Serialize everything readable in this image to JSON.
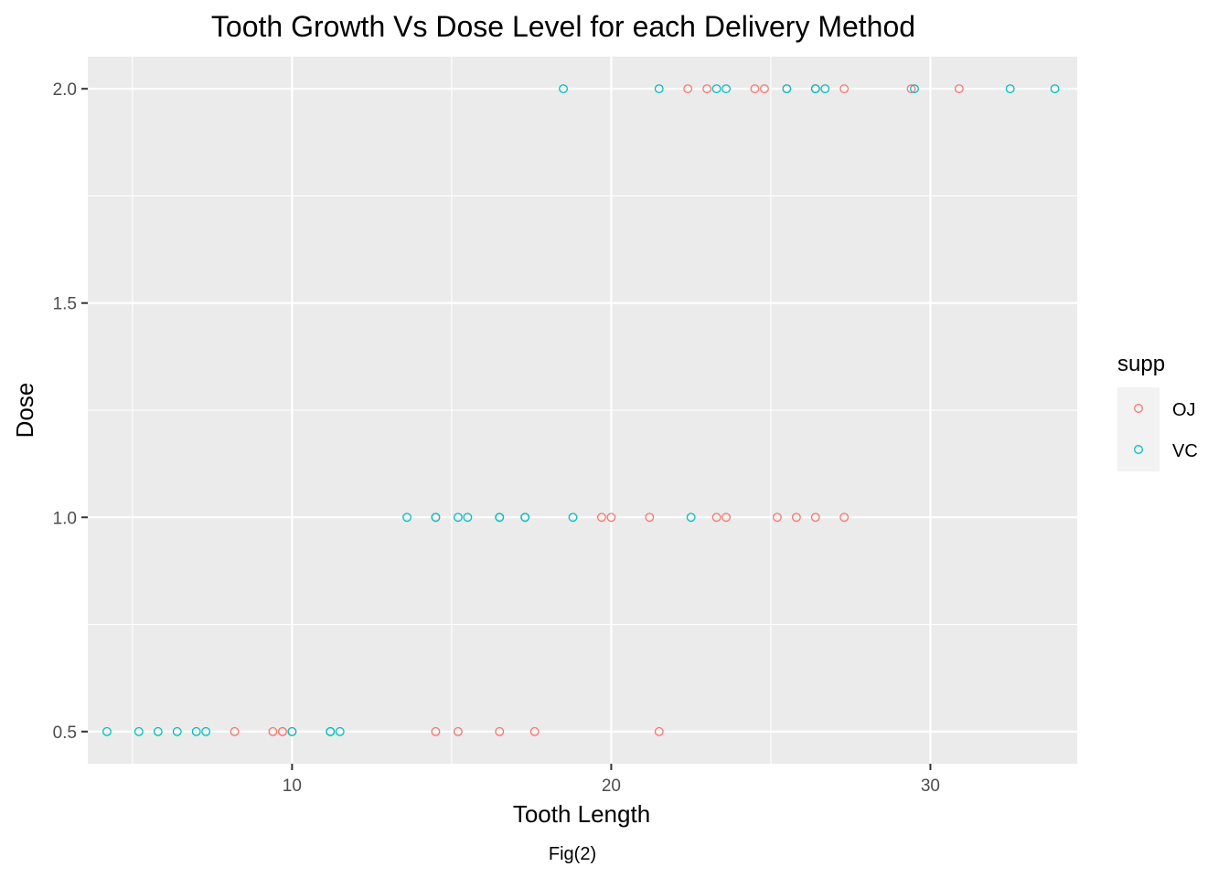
{
  "chart_data": {
    "type": "scatter",
    "title": "Tooth Growth Vs Dose Level for each Delivery Method",
    "xlabel": "Tooth Length",
    "ylabel": "Dose",
    "caption": "Fig(2)",
    "xlim": [
      3.6,
      34.6
    ],
    "ylim": [
      0.425,
      2.075
    ],
    "x_ticks": [
      10,
      20,
      30
    ],
    "y_ticks": [
      0.5,
      1.0,
      1.5,
      2.0
    ],
    "y_tick_labels": [
      "0.5",
      "1.0",
      "1.5",
      "2.0"
    ],
    "grid": true,
    "panel_background": "#ebebeb",
    "grid_color": "#ffffff",
    "legend": {
      "title": "supp",
      "position": "right",
      "background": "#f2f2f2"
    },
    "series": [
      {
        "name": "OJ",
        "color": "#f8766d",
        "x": [
          15.2,
          21.5,
          17.6,
          9.7,
          14.5,
          10.0,
          8.2,
          9.4,
          16.5,
          9.7,
          19.7,
          23.3,
          23.6,
          26.4,
          20.0,
          25.2,
          25.8,
          21.2,
          14.5,
          27.3,
          25.5,
          26.4,
          22.4,
          24.5,
          24.8,
          30.9,
          26.4,
          27.3,
          29.4,
          23.0
        ],
        "y": [
          0.5,
          0.5,
          0.5,
          0.5,
          0.5,
          0.5,
          0.5,
          0.5,
          0.5,
          0.5,
          1.0,
          1.0,
          1.0,
          1.0,
          1.0,
          1.0,
          1.0,
          1.0,
          1.0,
          1.0,
          2.0,
          2.0,
          2.0,
          2.0,
          2.0,
          2.0,
          2.0,
          2.0,
          2.0,
          2.0
        ]
      },
      {
        "name": "VC",
        "color": "#00bfc4",
        "x": [
          4.2,
          11.5,
          7.3,
          5.8,
          6.4,
          10.0,
          11.2,
          11.2,
          5.2,
          7.0,
          16.5,
          16.5,
          15.2,
          17.3,
          22.5,
          17.3,
          13.6,
          14.5,
          18.8,
          15.5,
          23.6,
          18.5,
          33.9,
          25.5,
          26.4,
          32.5,
          26.7,
          21.5,
          23.3,
          29.5
        ],
        "y": [
          0.5,
          0.5,
          0.5,
          0.5,
          0.5,
          0.5,
          0.5,
          0.5,
          0.5,
          0.5,
          1.0,
          1.0,
          1.0,
          1.0,
          1.0,
          1.0,
          1.0,
          1.0,
          1.0,
          1.0,
          2.0,
          2.0,
          2.0,
          2.0,
          2.0,
          2.0,
          2.0,
          2.0,
          2.0,
          2.0
        ]
      }
    ]
  }
}
